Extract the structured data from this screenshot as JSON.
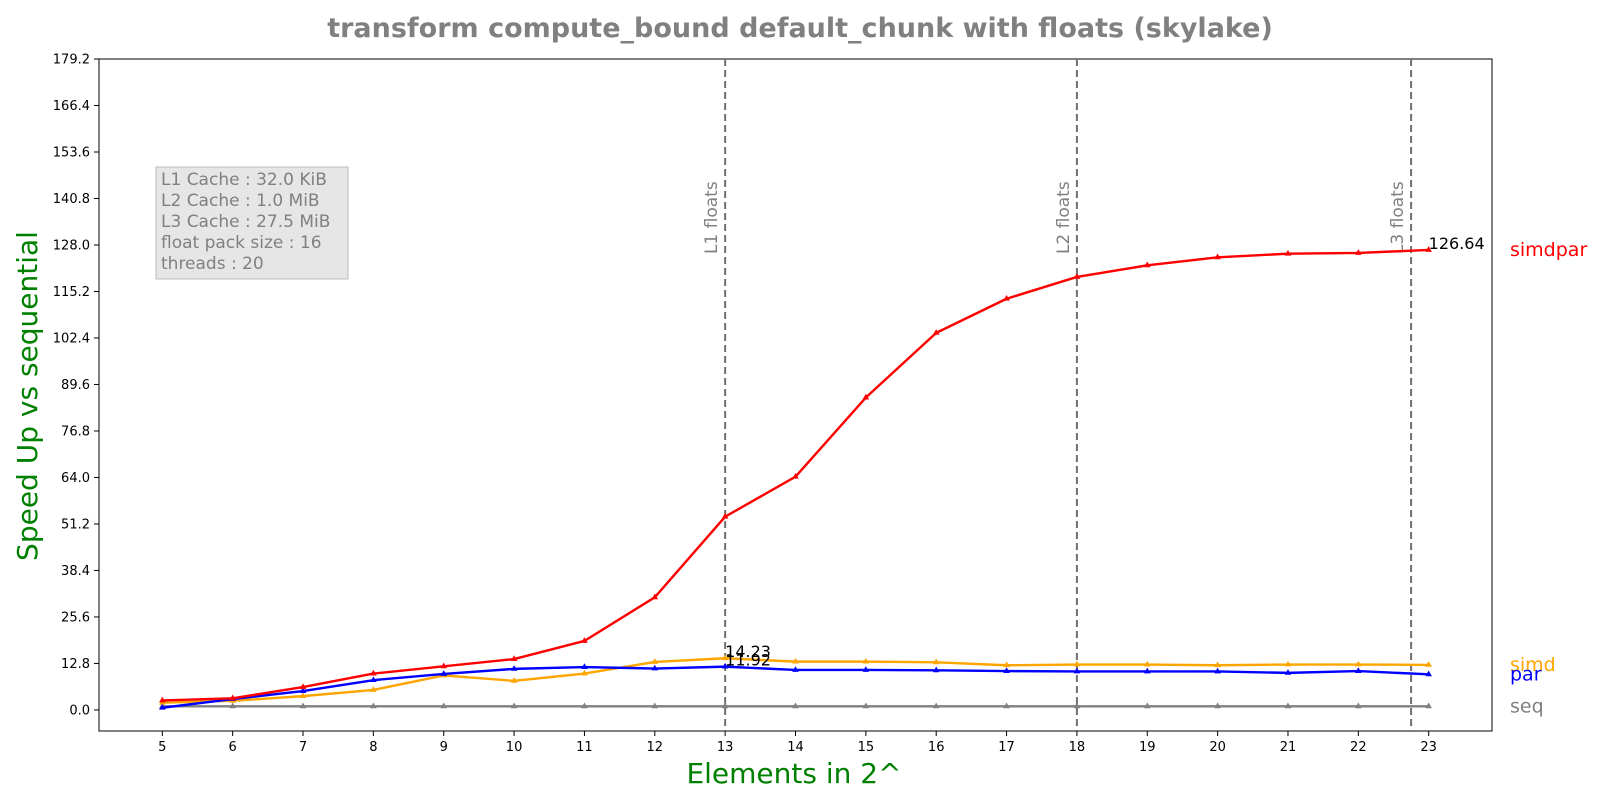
{
  "chart_data": {
    "type": "line",
    "title": "transform compute_bound default_chunk with floats  (skylake)",
    "xlabel": "Elements in 2^",
    "ylabel": "Speed Up vs sequential",
    "x": [
      5,
      6,
      7,
      8,
      9,
      10,
      11,
      12,
      13,
      14,
      15,
      16,
      17,
      18,
      19,
      20,
      21,
      22,
      23
    ],
    "xticks": [
      "5",
      "6",
      "7",
      "8",
      "9",
      "10",
      "11",
      "12",
      "13",
      "14",
      "15",
      "16",
      "17",
      "18",
      "19",
      "20",
      "21",
      "22",
      "23"
    ],
    "xlim": [
      4.1,
      23.9
    ],
    "ylim": [
      -5.8,
      179.2
    ],
    "yticks": [
      "0.0",
      "12.8",
      "25.6",
      "38.4",
      "51.2",
      "64.0",
      "76.8",
      "89.6",
      "102.4",
      "115.2",
      "128.0",
      "140.8",
      "153.6",
      "166.4",
      "179.2"
    ],
    "grid": false,
    "series": [
      {
        "name": "seq",
        "color": "#808080",
        "values": [
          1,
          1,
          1,
          1,
          1,
          1,
          1,
          1,
          1,
          1,
          1,
          1,
          1,
          1,
          1,
          1,
          1,
          1,
          1
        ]
      },
      {
        "name": "simd",
        "color": "#FFA500",
        "values": [
          2.0,
          2.5,
          3.8,
          5.5,
          9.5,
          8.0,
          10.0,
          13.2,
          14.23,
          13.3,
          13.3,
          13.1,
          12.3,
          12.5,
          12.5,
          12.3,
          12.5,
          12.5,
          12.4
        ]
      },
      {
        "name": "par",
        "color": "#0000FF",
        "values": [
          0.6,
          3.0,
          5.2,
          8.2,
          9.9,
          11.3,
          11.8,
          11.4,
          11.92,
          11.0,
          11.0,
          10.9,
          10.7,
          10.6,
          10.6,
          10.6,
          10.2,
          10.7,
          9.8
        ]
      },
      {
        "name": "simdpar",
        "color": "#FF0000",
        "values": [
          2.6,
          3.2,
          6.3,
          10.0,
          12.0,
          14.0,
          19.0,
          31.0,
          53.2,
          64.2,
          86.0,
          103.8,
          113.2,
          119.2,
          122.4,
          124.6,
          125.6,
          125.8,
          126.64
        ]
      }
    ],
    "data_labels": [
      {
        "x": 13,
        "y": 14.23,
        "text": "14.23"
      },
      {
        "x": 13,
        "y": 11.92,
        "text": "11.92"
      },
      {
        "x": 23,
        "y": 126.64,
        "text": "126.64"
      }
    ],
    "vlines": [
      {
        "x": 13,
        "label": "L1 floats"
      },
      {
        "x": 18,
        "label": "L2 floats"
      },
      {
        "x": 22.75,
        "label": "L3 floats"
      }
    ],
    "info_box": [
      "L1 Cache : 32.0 KiB",
      "L2 Cache : 1.0 MiB",
      "L3 Cache : 27.5 MiB",
      "float pack size : 16",
      "threads : 20"
    ],
    "legend_placement": "right-outside"
  }
}
